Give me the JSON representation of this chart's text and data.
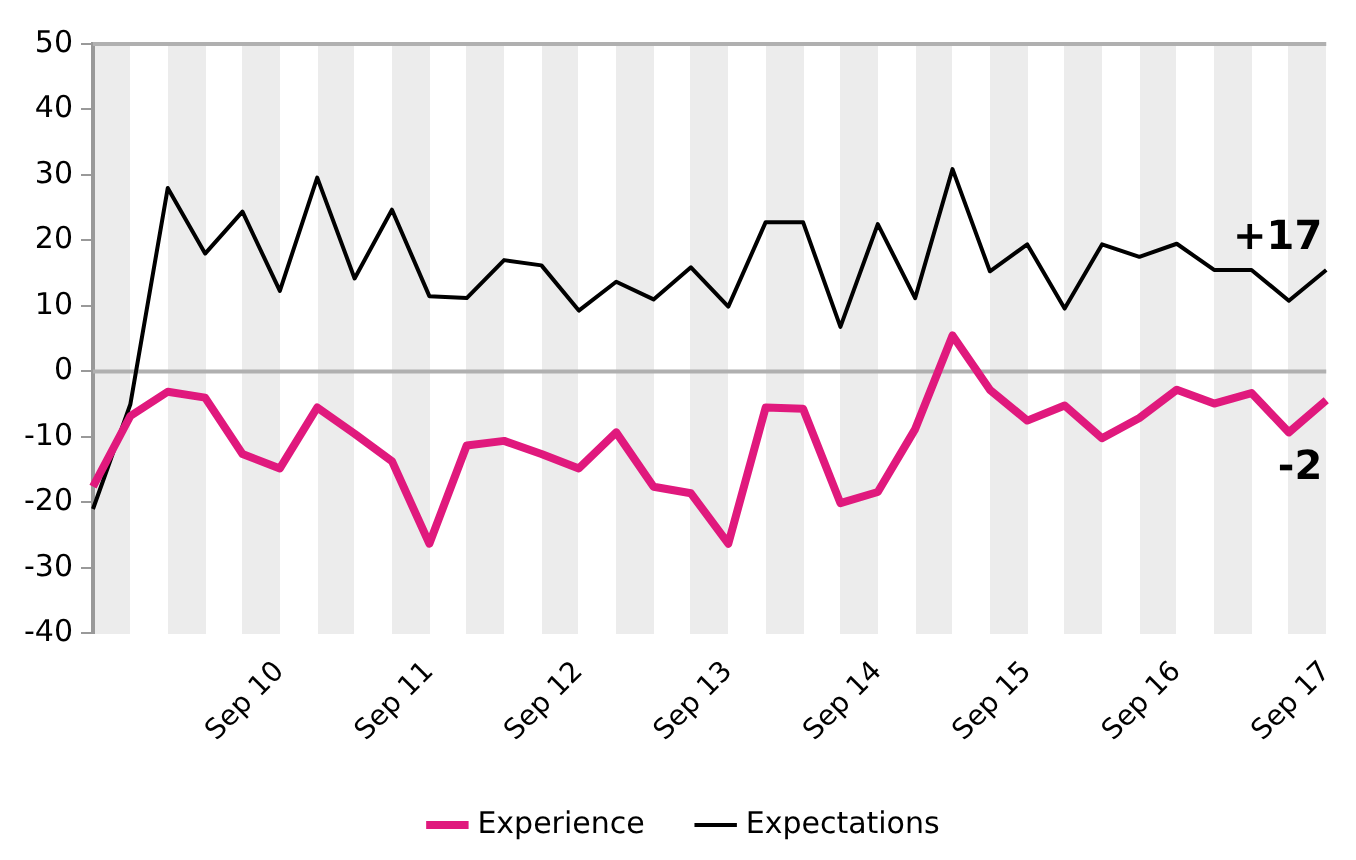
{
  "chart_data": {
    "type": "line",
    "categories": [
      null,
      null,
      null,
      null,
      null,
      "Sep 10",
      null,
      null,
      null,
      "Sep 11",
      null,
      null,
      null,
      "Sep 12",
      null,
      null,
      null,
      "Sep 13",
      null,
      null,
      null,
      "Sep 14",
      null,
      null,
      null,
      "Sep 15",
      null,
      null,
      null,
      "Sep 16",
      null,
      null,
      null,
      "Sep 17"
    ],
    "series": [
      {
        "name": "Experience",
        "color": "#e0197d",
        "values": [
          -17.6,
          -6.8,
          -3.1,
          -4,
          -12.6,
          -14.8,
          -5.5,
          -9.5,
          -13.7,
          -26.3,
          -11.3,
          -10.6,
          -12.6,
          -14.8,
          -9.3,
          -17.6,
          -18.6,
          -26.3,
          -5.5,
          -5.7,
          -20.1,
          -18.4,
          -8.8,
          5.5,
          -2.8,
          -7.5,
          -5.2,
          -10.2,
          -7.1,
          -2.8,
          -4.9,
          -3.3,
          -9.3,
          -4.4
        ]
      },
      {
        "name": "Expectations",
        "color": "#000000",
        "values": [
          -21,
          -5,
          28,
          18,
          24.4,
          12.3,
          29.6,
          14.2,
          24.7,
          11.5,
          11.2,
          17,
          16.2,
          9.3,
          13.7,
          11,
          15.9,
          9.9,
          22.8,
          22.8,
          6.8,
          22.5,
          11.2,
          30.9,
          15.3,
          19.4,
          9.6,
          19.4,
          17.5,
          19.5,
          15.5,
          15.5,
          10.8,
          15.5
        ]
      }
    ],
    "ylim": [
      -40,
      50
    ],
    "yticks": [
      -40,
      -30,
      -20,
      -10,
      0,
      10,
      20,
      30,
      40,
      50
    ],
    "grid": false,
    "legend": "bottom",
    "marker": "none",
    "line_style": "solid",
    "ref_lines": [
      {
        "axis": "y",
        "value": 0,
        "color": "#b0b0b0"
      }
    ],
    "annotations": [
      "+17",
      "-2"
    ]
  }
}
